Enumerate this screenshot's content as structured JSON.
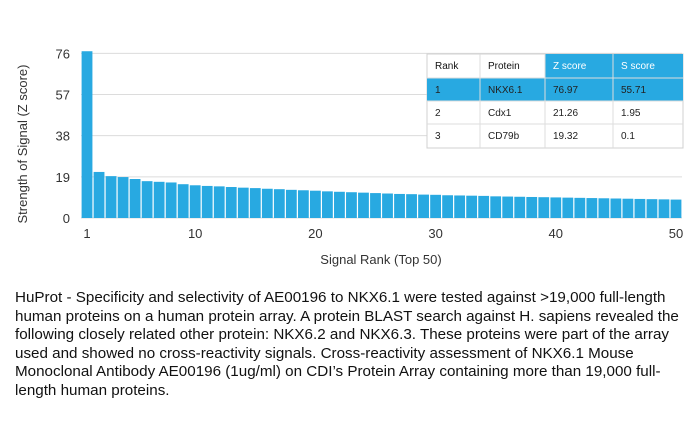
{
  "chart_data": {
    "type": "bar",
    "xlabel": "Signal Rank (Top 50)",
    "ylabel": "Strength of Signal (Z score)",
    "ylim": [
      0,
      78
    ],
    "yticks": [
      0,
      19,
      38,
      57,
      76
    ],
    "xticks": [
      1,
      10,
      20,
      30,
      40,
      50
    ],
    "grid": true,
    "bar_color": "#28a9e1",
    "x": [
      1,
      2,
      3,
      4,
      5,
      6,
      7,
      8,
      9,
      10,
      11,
      12,
      13,
      14,
      15,
      16,
      17,
      18,
      19,
      20,
      21,
      22,
      23,
      24,
      25,
      26,
      27,
      28,
      29,
      30,
      31,
      32,
      33,
      34,
      35,
      36,
      37,
      38,
      39,
      40,
      41,
      42,
      43,
      44,
      45,
      46,
      47,
      48,
      49,
      50
    ],
    "values": [
      76.97,
      21.26,
      19.32,
      18.9,
      18.0,
      17.0,
      16.7,
      16.4,
      15.6,
      15.1,
      14.8,
      14.6,
      14.3,
      14.0,
      13.8,
      13.5,
      13.3,
      13.0,
      12.8,
      12.6,
      12.3,
      12.1,
      11.9,
      11.7,
      11.5,
      11.3,
      11.1,
      11.0,
      10.8,
      10.7,
      10.5,
      10.4,
      10.3,
      10.2,
      10.0,
      9.9,
      9.8,
      9.7,
      9.6,
      9.5,
      9.4,
      9.3,
      9.2,
      9.1,
      9.0,
      8.9,
      8.8,
      8.7,
      8.6,
      8.5
    ],
    "table": {
      "headers": [
        "Rank",
        "Protein",
        "Z score",
        "S score"
      ],
      "rows": [
        [
          "1",
          "NKX6.1",
          "76.97",
          "55.71"
        ],
        [
          "2",
          "Cdx1",
          "21.26",
          "1.95"
        ],
        [
          "3",
          "CD79b",
          "19.32",
          "0.1"
        ]
      ],
      "highlight_color": "#28a9e1"
    }
  },
  "caption": "HuProt  -  Specificity and selectivity of AE00196 to NKX6.1 were tested against >19,000 full-length human proteins on a human protein array. A protein BLAST search against H. sapiens revealed the following closely related other protein: NKX6.2 and NKX6.3. These proteins were part of the array used and showed no cross-reactivity signals. Cross-reactivity assessment of NKX6.1 Mouse Monoclonal Antibody AE00196 (1ug/ml) on CDI’s Protein Array containing more than 19,000 full-length human proteins."
}
